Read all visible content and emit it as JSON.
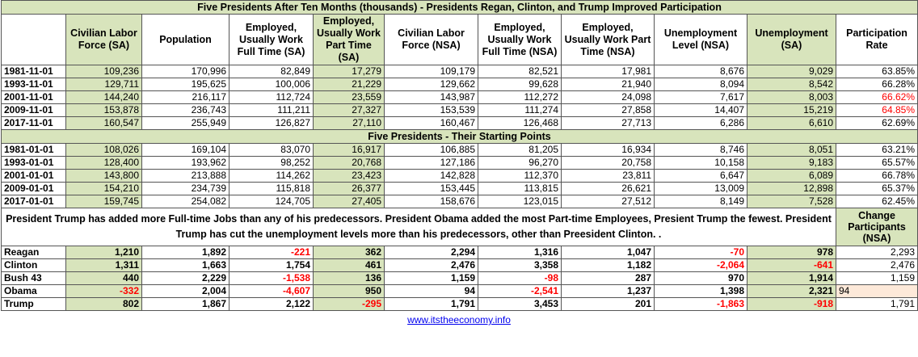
{
  "title": "Five Presidents After Ten Months (thousands) - Presidents Regan, Clinton, and Trump Improved Participation",
  "headers": [
    "",
    "Civilian Labor Force (SA)",
    "Population",
    "Employed, Usually Work Full Time (SA)",
    "Employed, Usually Work Part Time (SA)",
    "Civilian Labor Force (NSA)",
    "Employed, Usually Work Full Time (NSA)",
    "Employed, Usually Work Part Time (NSA)",
    "Unemployment Level (NSA)",
    "Unemployment (SA)",
    "Participation Rate"
  ],
  "after_ten_months": [
    [
      "1981-11-01",
      "109,236",
      "170,996",
      "82,849",
      "17,279",
      "109,179",
      "82,521",
      "17,981",
      "8,676",
      "9,029",
      "63.85%"
    ],
    [
      "1993-11-01",
      "129,711",
      "195,625",
      "100,006",
      "21,229",
      "129,662",
      "99,628",
      "21,940",
      "8,094",
      "8,542",
      "66.28%"
    ],
    [
      "2001-11-01",
      "144,240",
      "216,117",
      "112,724",
      "23,559",
      "143,987",
      "112,272",
      "24,098",
      "7,617",
      "8,003",
      "66.62%"
    ],
    [
      "2009-11-01",
      "153,878",
      "236,743",
      "111,211",
      "27,327",
      "153,539",
      "111,274",
      "27,858",
      "14,407",
      "15,219",
      "64.85%"
    ],
    [
      "2017-11-01",
      "160,547",
      "255,949",
      "126,827",
      "27,110",
      "160,467",
      "126,468",
      "27,713",
      "6,286",
      "6,610",
      "62.69%"
    ]
  ],
  "section2_title": "Five Presidents - Their Starting Points",
  "starting_points": [
    [
      "1981-01-01",
      "108,026",
      "169,104",
      "83,070",
      "16,917",
      "106,885",
      "81,205",
      "16,934",
      "8,746",
      "8,051",
      "63.21%"
    ],
    [
      "1993-01-01",
      "128,400",
      "193,962",
      "98,252",
      "20,768",
      "127,186",
      "96,270",
      "20,758",
      "10,158",
      "9,183",
      "65.57%"
    ],
    [
      "2001-01-01",
      "143,800",
      "213,888",
      "114,262",
      "23,423",
      "142,828",
      "112,370",
      "23,811",
      "6,647",
      "6,089",
      "66.78%"
    ],
    [
      "2009-01-01",
      "154,210",
      "234,739",
      "115,818",
      "26,377",
      "153,445",
      "113,815",
      "26,621",
      "13,009",
      "12,898",
      "65.37%"
    ],
    [
      "2017-01-01",
      "159,745",
      "254,082",
      "124,705",
      "27,405",
      "158,676",
      "123,015",
      "27,512",
      "8,149",
      "7,528",
      "62.45%"
    ]
  ],
  "note": "President Trump has added more Full-time Jobs than any of his predecessors. President Obama added the most Part-time Employees, Presient Trump the fewest. President Trump has cut the unemployment levels more than his predecessors, other than Preesident Clinton. .",
  "change_header": "Change Participants (NSA)",
  "changes": [
    [
      "Reagan",
      "1,210",
      "1,892",
      "-221",
      "362",
      "2,294",
      "1,316",
      "1,047",
      "-70",
      "978",
      "2,293"
    ],
    [
      "Clinton",
      "1,311",
      "1,663",
      "1,754",
      "461",
      "2,476",
      "3,358",
      "1,182",
      "-2,064",
      "-641",
      "2,476"
    ],
    [
      "Bush 43",
      "440",
      "2,229",
      "-1,538",
      "136",
      "1,159",
      "-98",
      "287",
      "970",
      "1,914",
      "1,159"
    ],
    [
      "Obama",
      "-332",
      "2,004",
      "-4,607",
      "950",
      "94",
      "-2,541",
      "1,237",
      "1,398",
      "2,321",
      "94"
    ],
    [
      "Trump",
      "802",
      "1,867",
      "2,122",
      "-295",
      "1,791",
      "3,453",
      "201",
      "-1,863",
      "-918",
      "1,791"
    ]
  ],
  "footer_link": "www.itstheeconomy.info",
  "colors": {
    "green": "#d8e4bc",
    "peach": "#fde9d9",
    "negative": "#ff0000",
    "link": "#0000ee"
  }
}
